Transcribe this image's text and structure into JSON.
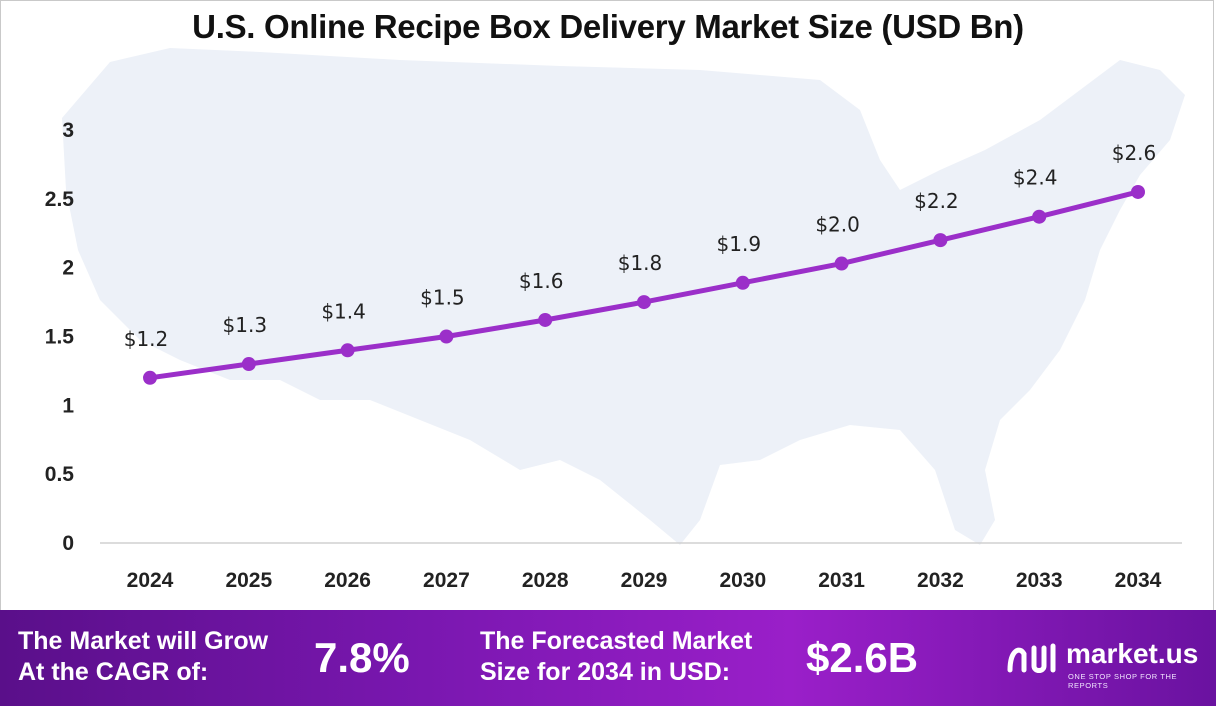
{
  "chart_data": {
    "type": "line",
    "title": "U.S. Online Recipe Box Delivery Market Size (USD Bn)",
    "categories": [
      "2024",
      "2025",
      "2026",
      "2027",
      "2028",
      "2029",
      "2030",
      "2031",
      "2032",
      "2033",
      "2034"
    ],
    "values": [
      1.2,
      1.3,
      1.4,
      1.5,
      1.62,
      1.75,
      1.89,
      2.03,
      2.2,
      2.37,
      2.55
    ],
    "data_labels": [
      "$1.2",
      "$1.3",
      "$1.4",
      "$1.5",
      "$1.6",
      "$1.8",
      "$1.9",
      "$2.0",
      "$2.2",
      "$2.4",
      "$2.6"
    ],
    "y_ticks": [
      "0",
      "0.5",
      "1",
      "1.5",
      "2",
      "2.5",
      "3"
    ],
    "ylim": [
      0,
      3
    ],
    "grid": false,
    "line_color": "#9b2fc9",
    "background_shape": "usa-map-silhouette"
  },
  "footer": {
    "cagr_label_line1": "The Market will Grow",
    "cagr_label_line2": "At the CAGR of:",
    "cagr_value": "7.8%",
    "forecast_label_line1": "The Forecasted Market",
    "forecast_label_line2": "Size for 2034 in USD:",
    "forecast_value": "$2.6B",
    "brand_name": "market.us",
    "brand_tagline": "ONE STOP SHOP FOR THE REPORTS"
  }
}
